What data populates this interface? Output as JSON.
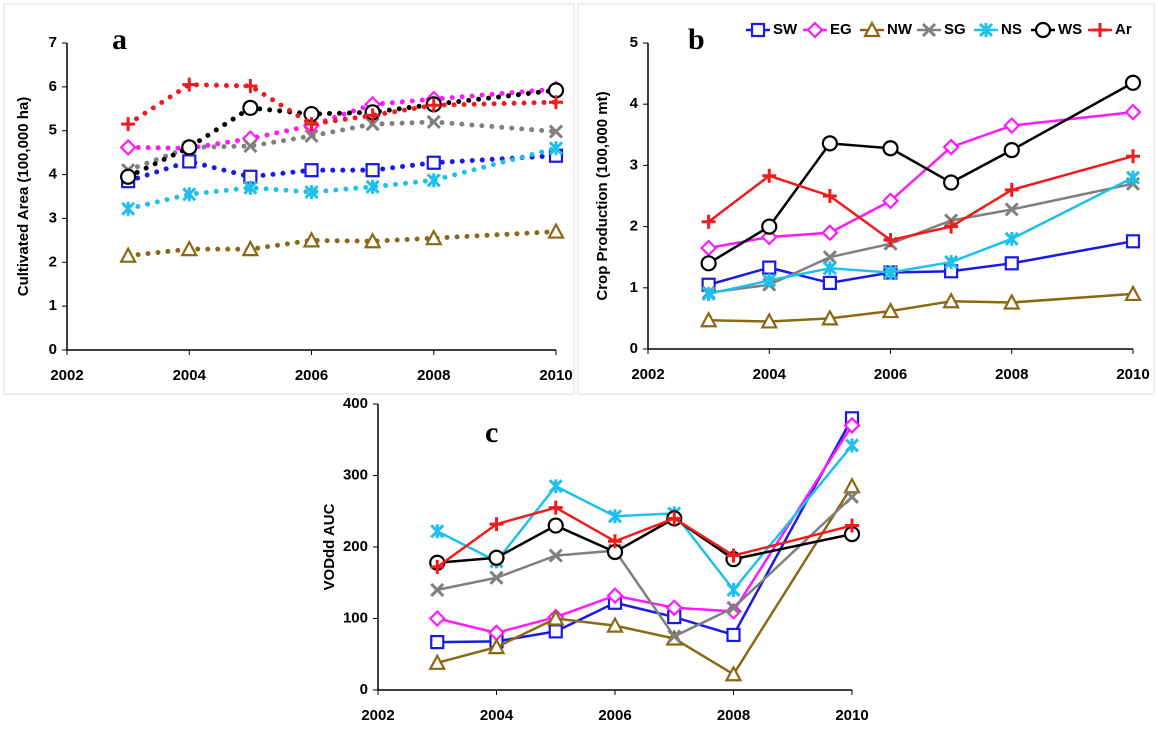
{
  "chart_data": [
    {
      "type": "line",
      "panel": "a",
      "y_label": "Cultivated Area (100,000 ha)",
      "line_style": "dotted",
      "x": [
        2003,
        2004,
        2005,
        2006,
        2007,
        2008,
        2010
      ],
      "xlim": [
        2002,
        2010
      ],
      "xticks": [
        2002,
        2004,
        2006,
        2008,
        2010
      ],
      "ylim": [
        0,
        7
      ],
      "yticks": [
        0,
        1,
        2,
        3,
        4,
        5,
        6,
        7
      ],
      "series": [
        {
          "color": "#1a1ae6",
          "marker": "square",
          "values": [
            3.85,
            4.3,
            3.95,
            4.1,
            4.1,
            4.27,
            4.43
          ]
        },
        {
          "color": "#ff19ff",
          "marker": "diamond",
          "values": [
            4.62,
            4.6,
            4.82,
            5.12,
            5.6,
            5.72,
            5.95
          ]
        },
        {
          "color": "#8b6914",
          "marker": "triangle",
          "values": [
            2.15,
            2.3,
            2.3,
            2.5,
            2.48,
            2.55,
            2.7
          ]
        },
        {
          "color": "#808080",
          "marker": "cross",
          "values": [
            4.1,
            4.62,
            4.65,
            4.88,
            5.15,
            5.2,
            4.98
          ]
        },
        {
          "color": "#1ec0ee",
          "marker": "star",
          "values": [
            3.22,
            3.55,
            3.7,
            3.6,
            3.72,
            3.87,
            4.6
          ]
        },
        {
          "color": "#000000",
          "marker": "circle",
          "values": [
            3.95,
            4.62,
            5.52,
            5.38,
            5.42,
            5.6,
            5.92
          ]
        },
        {
          "color": "#ee1c1c",
          "marker": "plus",
          "values": [
            5.15,
            6.05,
            6.02,
            5.15,
            5.35,
            5.58,
            5.65
          ]
        }
      ]
    },
    {
      "type": "line",
      "panel": "b",
      "y_label": "Crop Production (100,000 mt)",
      "line_style": "solid",
      "legend": "top",
      "x": [
        2003,
        2004,
        2005,
        2006,
        2007,
        2008,
        2010
      ],
      "xlim": [
        2002,
        2010
      ],
      "xticks": [
        2002,
        2004,
        2006,
        2008,
        2010
      ],
      "ylim": [
        0,
        5
      ],
      "yticks": [
        0,
        1,
        2,
        3,
        4,
        5
      ],
      "series": [
        {
          "name": "SW",
          "color": "#1a1ae6",
          "marker": "square",
          "values": [
            1.05,
            1.33,
            1.08,
            1.25,
            1.27,
            1.4,
            1.76
          ]
        },
        {
          "name": "EG",
          "color": "#ff19ff",
          "marker": "diamond",
          "values": [
            1.65,
            1.83,
            1.9,
            2.42,
            3.3,
            3.65,
            3.87
          ]
        },
        {
          "name": "NW",
          "color": "#8b6914",
          "marker": "triangle",
          "values": [
            0.47,
            0.45,
            0.5,
            0.62,
            0.78,
            0.76,
            0.9
          ]
        },
        {
          "name": "SG",
          "color": "#808080",
          "marker": "cross",
          "values": [
            0.92,
            1.05,
            1.5,
            1.72,
            2.1,
            2.28,
            2.7
          ]
        },
        {
          "name": "NS",
          "color": "#1ec0ee",
          "marker": "star",
          "values": [
            0.9,
            1.12,
            1.32,
            1.25,
            1.42,
            1.8,
            2.8
          ]
        },
        {
          "name": "WS",
          "color": "#000000",
          "marker": "circle",
          "values": [
            1.4,
            2.0,
            3.36,
            3.28,
            2.72,
            3.25,
            4.35
          ]
        },
        {
          "name": "Ar",
          "color": "#ee1c1c",
          "marker": "plus",
          "values": [
            2.08,
            2.83,
            2.5,
            1.78,
            2.0,
            2.6,
            3.15
          ]
        }
      ]
    },
    {
      "type": "line",
      "panel": "c",
      "y_label": "VODdd AUC",
      "line_style": "solid",
      "x": [
        2003,
        2004,
        2005,
        2006,
        2007,
        2008,
        2010
      ],
      "xlim": [
        2002,
        2010
      ],
      "xticks": [
        2002,
        2004,
        2006,
        2008,
        2010
      ],
      "ylim": [
        0,
        400
      ],
      "yticks": [
        0,
        100,
        200,
        300,
        400
      ],
      "series": [
        {
          "color": "#1a1ae6",
          "marker": "square",
          "values": [
            67,
            68,
            82,
            122,
            102,
            77,
            380
          ]
        },
        {
          "color": "#ff19ff",
          "marker": "diamond",
          "values": [
            100,
            80,
            102,
            132,
            115,
            110,
            370
          ]
        },
        {
          "color": "#8b6914",
          "marker": "triangle",
          "values": [
            38,
            60,
            100,
            90,
            72,
            22,
            285
          ]
        },
        {
          "color": "#808080",
          "marker": "cross",
          "values": [
            140,
            157,
            188,
            195,
            75,
            115,
            270
          ]
        },
        {
          "color": "#1ec0ee",
          "marker": "star",
          "values": [
            222,
            180,
            285,
            243,
            247,
            140,
            342
          ]
        },
        {
          "color": "#000000",
          "marker": "circle",
          "values": [
            178,
            185,
            230,
            193,
            240,
            183,
            218
          ]
        },
        {
          "color": "#ee1c1c",
          "marker": "plus",
          "values": [
            172,
            232,
            255,
            208,
            240,
            188,
            230
          ]
        }
      ]
    }
  ]
}
